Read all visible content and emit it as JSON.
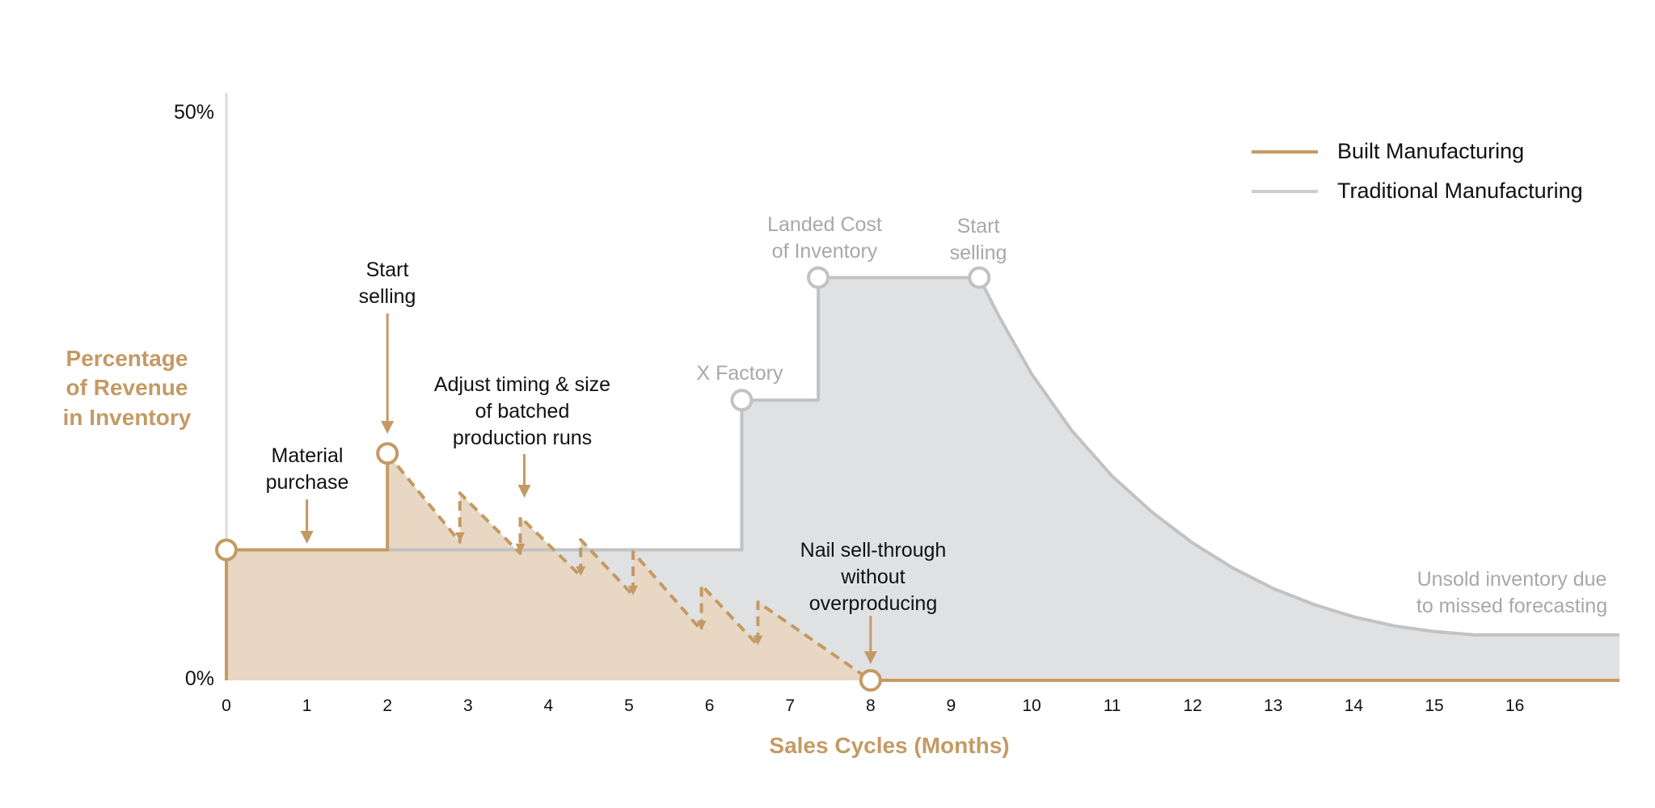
{
  "chart_data": {
    "type": "area",
    "xlabel": "Sales Cycles (Months)",
    "ylabel": "Percentage of Revenue in Inventory",
    "ylabel_lines": [
      "Percentage",
      "of Revenue",
      "in Inventory"
    ],
    "x_ticks": [
      "0",
      "1",
      "2",
      "3",
      "4",
      "5",
      "6",
      "7",
      "8",
      "9",
      "10",
      "11",
      "12",
      "13",
      "14",
      "15",
      "16"
    ],
    "y_ticks": [
      "0%",
      "50%"
    ],
    "xlim": [
      0,
      17.3
    ],
    "ylim": [
      0,
      50
    ],
    "legend_position": "top-right",
    "series": [
      {
        "name": "Built Manufacturing",
        "color": "#c49a64",
        "line": [
          [
            0,
            0
          ],
          [
            0,
            11.5
          ],
          [
            2,
            11.5
          ],
          [
            2,
            20
          ],
          [
            8,
            0
          ],
          [
            17.3,
            0
          ]
        ],
        "sawtooth": [
          [
            2,
            20
          ],
          [
            2.9,
            12.2
          ],
          [
            2.9,
            16.5
          ],
          [
            3.65,
            11.2
          ],
          [
            3.65,
            14.4
          ],
          [
            4.4,
            9.2
          ],
          [
            4.4,
            12.4
          ],
          [
            5.05,
            7.5
          ],
          [
            5.05,
            11.3
          ],
          [
            5.9,
            4.4
          ],
          [
            5.9,
            8.4
          ],
          [
            6.6,
            3.1
          ],
          [
            6.6,
            6.9
          ],
          [
            8,
            0
          ]
        ],
        "markers": [
          [
            0,
            11.5
          ],
          [
            2,
            20
          ],
          [
            8,
            0
          ]
        ]
      },
      {
        "name": "Traditional Manufacturing",
        "color": "#c2c2c2",
        "line": [
          [
            0,
            11.5
          ],
          [
            6.4,
            11.5
          ],
          [
            6.4,
            24.7
          ],
          [
            7.35,
            24.7
          ],
          [
            7.35,
            35.5
          ],
          [
            9.35,
            35.5
          ],
          [
            9.6,
            32
          ],
          [
            10,
            27
          ],
          [
            10.5,
            22
          ],
          [
            11,
            18
          ],
          [
            11.5,
            14.8
          ],
          [
            12,
            12.1
          ],
          [
            12.5,
            9.9
          ],
          [
            13,
            8.1
          ],
          [
            13.5,
            6.7
          ],
          [
            14,
            5.6
          ],
          [
            14.5,
            4.8
          ],
          [
            15,
            4.3
          ],
          [
            15.5,
            4.0
          ],
          [
            16,
            4.0
          ],
          [
            17.3,
            4.0
          ]
        ],
        "markers": [
          [
            6.4,
            24.7
          ],
          [
            7.35,
            35.5
          ],
          [
            9.35,
            35.5
          ]
        ]
      }
    ],
    "annotations": [
      {
        "lines": [
          "Material",
          "purchase"
        ],
        "x": 1,
        "y": 11.5,
        "style": "dark"
      },
      {
        "lines": [
          "Start",
          "selling"
        ],
        "x": 2,
        "y": 20,
        "style": "dark"
      },
      {
        "lines": [
          "Adjust timing & size",
          "of batched",
          "production runs"
        ],
        "x": 3.7,
        "y": 16,
        "style": "dark"
      },
      {
        "lines": [
          "Nail sell-through",
          "without",
          "overproducing"
        ],
        "x": 8,
        "y": 0,
        "style": "dark"
      },
      {
        "lines": [
          "X Factory"
        ],
        "x": 6.4,
        "y": 24.7,
        "style": "gray"
      },
      {
        "lines": [
          "Landed Cost",
          "of Inventory"
        ],
        "x": 7.35,
        "y": 35.5,
        "style": "gray"
      },
      {
        "lines": [
          "Start",
          "selling"
        ],
        "x": 9.35,
        "y": 35.5,
        "style": "gray"
      },
      {
        "lines": [
          "Unsold inventory due",
          "to missed forecasting"
        ],
        "x": 16.5,
        "y": 4.0,
        "style": "gray"
      }
    ]
  }
}
